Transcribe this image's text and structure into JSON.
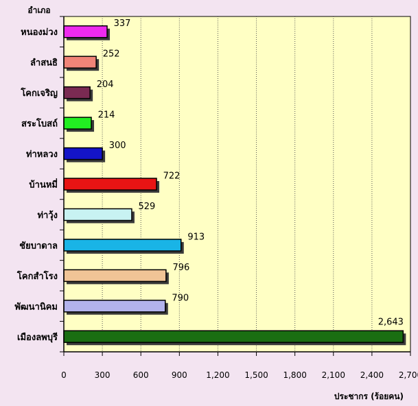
{
  "chart_data": {
    "type": "bar",
    "orientation": "horizontal",
    "ylabel": "อำเภอ",
    "xlabel": "ประชากร (ร้อยคน)",
    "xlim": [
      0,
      2700
    ],
    "xticks": [
      0,
      300,
      600,
      900,
      1200,
      1500,
      1800,
      2100,
      2400,
      2700
    ],
    "xtick_labels": [
      "0",
      "300",
      "600",
      "900",
      "1,200",
      "1,500",
      "1,800",
      "2,100",
      "2,400",
      "2,700"
    ],
    "grid": "vertical dotted",
    "plot_background": "#ffffc4",
    "categories": [
      "หนองม่วง",
      "ลำสนธิ",
      "โคกเจริญ",
      "สระโบสถ์",
      "ท่าหลวง",
      "บ้านหมี่",
      "ท่าวุ้ง",
      "ชัยบาดาล",
      "โคกสำโรง",
      "พัฒนานิคม",
      "เมืองลพบุรี"
    ],
    "values": [
      337,
      252,
      204,
      214,
      300,
      722,
      529,
      913,
      796,
      790,
      2643
    ],
    "value_labels": [
      "337",
      "252",
      "204",
      "214",
      "300",
      "722",
      "529",
      "913",
      "796",
      "790",
      "2,643"
    ],
    "colors": [
      "#ee2aee",
      "#f08478",
      "#7a2a52",
      "#22ee22",
      "#1414c8",
      "#e81414",
      "#c8f2f2",
      "#19b4e6",
      "#f0c496",
      "#b2b2ec",
      "#1a6e12"
    ]
  }
}
